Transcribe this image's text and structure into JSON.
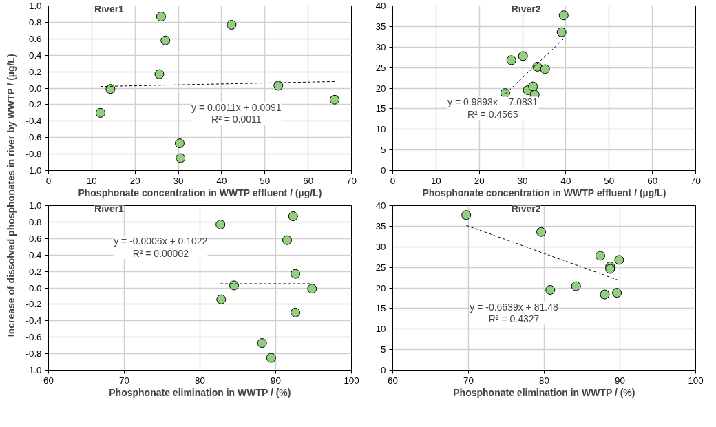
{
  "chart_data": [
    {
      "type": "scatter",
      "title": "River1",
      "xlabel": "Phosphonate concentration in WWTP effluent / (µg/L)",
      "ylabel": "Increase of dissolved phosphonates in river by WWTP / (µg/L)",
      "xlim": [
        0,
        70
      ],
      "xticks": [
        0,
        10,
        20,
        30,
        40,
        50,
        60,
        70
      ],
      "ylim": [
        -1.0,
        1.0
      ],
      "yticks": [
        {
          "value": -1.0,
          "label": "-1.0"
        },
        {
          "value": -0.8,
          "label": "-0.8"
        },
        {
          "value": -0.6,
          "label": "-0.6"
        },
        {
          "value": -0.4,
          "label": "-0.4"
        },
        {
          "value": -0.2,
          "label": "-0.2"
        },
        {
          "value": 0.0,
          "label": "0.0"
        },
        {
          "value": 0.2,
          "label": "0.2"
        },
        {
          "value": 0.4,
          "label": "0.4"
        },
        {
          "value": 0.6,
          "label": "0.6"
        },
        {
          "value": 0.8,
          "label": "0.8"
        },
        {
          "value": 1.0,
          "label": "1.0"
        }
      ],
      "grid": true,
      "marker": "circle",
      "series": [
        {
          "color": "#92d080",
          "x": [
            12,
            14.3,
            25.6,
            26,
            27,
            42.3,
            30.3,
            30.5,
            53.1,
            66.1
          ],
          "values": [
            -0.3,
            -0.01,
            0.17,
            0.87,
            0.58,
            0.77,
            -0.67,
            -0.85,
            0.03,
            -0.14
          ]
        },
        {
          "type": "line",
          "color": "#000000",
          "line_style": "dashed",
          "x": [
            12,
            66.1
          ],
          "values": [
            0.02,
            0.08
          ],
          "marker": "none"
        }
      ],
      "annotations": [
        "y = 0.0011x + 0.0091\nR² = 0.0011"
      ]
    },
    {
      "type": "scatter",
      "title": "River2",
      "xlabel": "Phosphonate concentration in WWTP effluent / (µg/L)",
      "xlim": [
        0,
        70
      ],
      "xticks": [
        0,
        10,
        20,
        30,
        40,
        50,
        60,
        70
      ],
      "ylim": [
        0,
        40
      ],
      "yticks": [
        0,
        5,
        10,
        15,
        20,
        25,
        30,
        35,
        40
      ],
      "grid": true,
      "marker": "circle",
      "series": [
        {
          "color": "#92d080",
          "x": [
            26,
            27.4,
            30.1,
            31.2,
            32.4,
            32.8,
            33.4,
            35.2,
            39,
            39.5
          ],
          "values": [
            18.8,
            26.8,
            27.8,
            19.5,
            20.4,
            18.4,
            25.2,
            24.6,
            33.6,
            37.7
          ]
        },
        {
          "type": "line",
          "color": "#000000",
          "line_style": "dashed",
          "x": [
            26,
            39.5
          ],
          "values": [
            18.6,
            32.0
          ],
          "marker": "none"
        }
      ],
      "annotations": [
        "y = 0.9893x – 7.0831\nR² = 0.4565"
      ]
    },
    {
      "type": "scatter",
      "title": "River1",
      "xlabel": "Phosphonate elimination in WWTP / (%)",
      "xlim": [
        60,
        100
      ],
      "xticks": [
        60,
        70,
        80,
        90,
        100
      ],
      "ylim": [
        -1.0,
        1.0
      ],
      "yticks": [
        {
          "value": -1.0,
          "label": "-1.0"
        },
        {
          "value": -0.8,
          "label": "-0.8"
        },
        {
          "value": -0.6,
          "label": "-0.6"
        },
        {
          "value": -0.4,
          "label": "-0.4"
        },
        {
          "value": -0.2,
          "label": "-0.2"
        },
        {
          "value": 0.0,
          "label": "0.0"
        },
        {
          "value": 0.2,
          "label": "0.2"
        },
        {
          "value": 0.4,
          "label": "0.4"
        },
        {
          "value": 0.6,
          "label": "0.6"
        },
        {
          "value": 0.8,
          "label": "0.8"
        },
        {
          "value": 1.0,
          "label": "1.0"
        }
      ],
      "grid": true,
      "marker": "circle",
      "series": [
        {
          "color": "#92d080",
          "x": [
            82.7,
            92.3,
            91.5,
            92.6,
            84.5,
            94.8,
            82.8,
            92.6,
            88.2,
            89.4
          ],
          "values": [
            0.77,
            0.87,
            0.58,
            0.17,
            0.03,
            -0.01,
            -0.14,
            -0.3,
            -0.67,
            -0.85
          ]
        },
        {
          "type": "line",
          "color": "#000000",
          "line_style": "dashed",
          "x": [
            82.7,
            94.8
          ],
          "values": [
            0.05,
            0.05
          ],
          "marker": "none"
        }
      ],
      "annotations": [
        "y = -0.0006x + 0.1022\nR² = 0.00002"
      ]
    },
    {
      "type": "scatter",
      "title": "River2",
      "xlabel": "Phosphonate elimination in WWTP / (%)",
      "xlim": [
        60,
        100
      ],
      "xticks": [
        60,
        70,
        80,
        90,
        100
      ],
      "ylim": [
        0,
        40
      ],
      "yticks": [
        0,
        5,
        10,
        15,
        20,
        25,
        30,
        35,
        40
      ],
      "grid": true,
      "marker": "circle",
      "series": [
        {
          "color": "#92d080",
          "x": [
            69.7,
            79.6,
            80.8,
            84.2,
            87.4,
            88.7,
            88.7,
            89.9,
            88,
            89.6
          ],
          "values": [
            37.7,
            33.6,
            19.5,
            20.4,
            27.8,
            25.2,
            24.6,
            26.8,
            18.4,
            18.8
          ]
        },
        {
          "type": "line",
          "color": "#000000",
          "line_style": "dashed",
          "x": [
            69.7,
            89.9
          ],
          "values": [
            35.2,
            21.8
          ],
          "marker": "none"
        }
      ],
      "annotations": [
        "y = -0.6639x + 81.48\nR² = 0.4327"
      ]
    }
  ]
}
